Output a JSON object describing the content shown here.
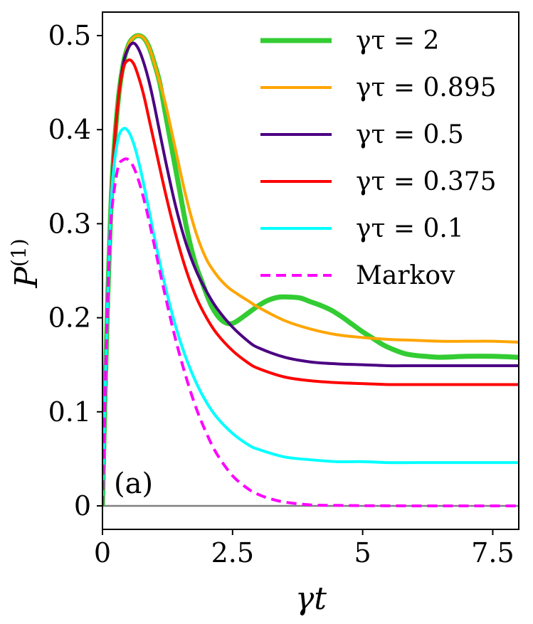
{
  "chart_data": {
    "type": "line",
    "title": "",
    "panel_label": "(a)",
    "xlabel": "γt",
    "ylabel": "P(1)",
    "ylabel_main": "P",
    "ylabel_sup": "(1)",
    "xlim": [
      0,
      8
    ],
    "ylim": [
      -0.025,
      0.525
    ],
    "grid": false,
    "legend_position": "top-right",
    "xticks": [
      {
        "value": 0,
        "label": "0"
      },
      {
        "value": 2.5,
        "label": "2.5"
      },
      {
        "value": 5,
        "label": "5"
      },
      {
        "value": 7.5,
        "label": "7.5"
      }
    ],
    "yticks": [
      {
        "value": 0,
        "label": "0"
      },
      {
        "value": 0.1,
        "label": "0.1"
      },
      {
        "value": 0.2,
        "label": "0.2"
      },
      {
        "value": 0.3,
        "label": "0.3"
      },
      {
        "value": 0.4,
        "label": "0.4"
      },
      {
        "value": 0.5,
        "label": "0.5"
      }
    ],
    "zero_line": 0,
    "series": [
      {
        "name": "γτ = 2",
        "color": "#33cc33",
        "dash": "solid",
        "weight": "thick",
        "x": [
          0,
          0.05,
          0.1,
          0.15,
          0.2,
          0.3,
          0.4,
          0.5,
          0.6,
          0.7,
          0.8,
          0.9,
          1.0,
          1.1,
          1.2,
          1.3,
          1.4,
          1.5,
          1.6,
          1.7,
          1.8,
          1.9,
          2.0,
          2.1,
          2.2,
          2.3,
          2.4,
          2.5,
          2.6,
          2.8,
          3.0,
          3.2,
          3.4,
          3.6,
          3.8,
          4.0,
          4.2,
          4.4,
          4.6,
          4.8,
          5.0,
          5.2,
          5.4,
          5.6,
          5.8,
          6.0,
          6.2,
          6.5,
          7.0,
          7.5,
          8.0
        ],
        "y": [
          0,
          0.12,
          0.22,
          0.3,
          0.36,
          0.43,
          0.47,
          0.49,
          0.498,
          0.5,
          0.497,
          0.487,
          0.47,
          0.45,
          0.42,
          0.39,
          0.36,
          0.33,
          0.3,
          0.275,
          0.255,
          0.24,
          0.225,
          0.212,
          0.203,
          0.197,
          0.194,
          0.194,
          0.197,
          0.205,
          0.213,
          0.219,
          0.222,
          0.222,
          0.221,
          0.217,
          0.213,
          0.208,
          0.201,
          0.193,
          0.185,
          0.178,
          0.171,
          0.166,
          0.162,
          0.16,
          0.159,
          0.158,
          0.159,
          0.159,
          0.158
        ]
      },
      {
        "name": "γτ = 0.895",
        "color": "#ffa500",
        "dash": "solid",
        "weight": "normal",
        "x": [
          0,
          0.05,
          0.1,
          0.15,
          0.2,
          0.3,
          0.4,
          0.5,
          0.6,
          0.7,
          0.8,
          0.9,
          1.0,
          1.2,
          1.4,
          1.6,
          1.8,
          2.0,
          2.2,
          2.4,
          2.6,
          2.8,
          3.0,
          3.5,
          4.0,
          4.5,
          5.0,
          5.5,
          6.0,
          6.5,
          7.0,
          7.5,
          8.0
        ],
        "y": [
          0,
          0.12,
          0.22,
          0.3,
          0.36,
          0.43,
          0.47,
          0.49,
          0.498,
          0.5,
          0.497,
          0.487,
          0.47,
          0.43,
          0.38,
          0.33,
          0.29,
          0.262,
          0.245,
          0.233,
          0.225,
          0.218,
          0.211,
          0.197,
          0.188,
          0.182,
          0.179,
          0.177,
          0.176,
          0.175,
          0.175,
          0.175,
          0.174
        ]
      },
      {
        "name": "γτ = 0.5",
        "color": "#4b0082",
        "dash": "solid",
        "weight": "normal",
        "x": [
          0,
          0.05,
          0.1,
          0.15,
          0.2,
          0.3,
          0.4,
          0.5,
          0.6,
          0.7,
          0.8,
          0.9,
          1.0,
          1.2,
          1.4,
          1.6,
          1.8,
          2.0,
          2.2,
          2.5,
          2.8,
          3.0,
          3.5,
          4.0,
          4.5,
          5.0,
          5.5,
          6.0,
          7.0,
          8.0
        ],
        "y": [
          0,
          0.12,
          0.22,
          0.3,
          0.36,
          0.43,
          0.47,
          0.487,
          0.492,
          0.485,
          0.47,
          0.45,
          0.425,
          0.37,
          0.32,
          0.28,
          0.25,
          0.228,
          0.21,
          0.19,
          0.175,
          0.168,
          0.158,
          0.153,
          0.151,
          0.15,
          0.149,
          0.149,
          0.149,
          0.149
        ]
      },
      {
        "name": "γτ = 0.375",
        "color": "#ff0000",
        "dash": "solid",
        "weight": "normal",
        "x": [
          0,
          0.05,
          0.1,
          0.15,
          0.2,
          0.3,
          0.4,
          0.5,
          0.6,
          0.7,
          0.8,
          0.9,
          1.0,
          1.2,
          1.4,
          1.6,
          1.8,
          2.0,
          2.2,
          2.5,
          2.8,
          3.0,
          3.5,
          4.0,
          4.5,
          5.0,
          5.5,
          6.0,
          7.0,
          8.0
        ],
        "y": [
          0,
          0.12,
          0.22,
          0.3,
          0.36,
          0.43,
          0.465,
          0.474,
          0.47,
          0.455,
          0.435,
          0.41,
          0.385,
          0.335,
          0.29,
          0.252,
          0.222,
          0.2,
          0.183,
          0.165,
          0.152,
          0.146,
          0.137,
          0.133,
          0.131,
          0.13,
          0.129,
          0.129,
          0.129,
          0.129
        ]
      },
      {
        "name": "γτ = 0.1",
        "color": "#00ffff",
        "dash": "solid",
        "weight": "normal",
        "x": [
          0,
          0.05,
          0.1,
          0.15,
          0.2,
          0.3,
          0.4,
          0.5,
          0.6,
          0.7,
          0.8,
          0.9,
          1.0,
          1.2,
          1.4,
          1.6,
          1.8,
          2.0,
          2.2,
          2.5,
          2.8,
          3.0,
          3.5,
          4.0,
          4.5,
          5.0,
          5.5,
          6.0,
          7.0,
          8.0
        ],
        "y": [
          0,
          0.12,
          0.22,
          0.3,
          0.35,
          0.39,
          0.401,
          0.398,
          0.385,
          0.365,
          0.34,
          0.313,
          0.285,
          0.235,
          0.192,
          0.158,
          0.131,
          0.11,
          0.094,
          0.077,
          0.065,
          0.06,
          0.052,
          0.049,
          0.047,
          0.047,
          0.046,
          0.046,
          0.046,
          0.046
        ]
      },
      {
        "name": "Markov",
        "color": "#ff00ff",
        "dash": "dashed",
        "weight": "normal",
        "x": [
          0,
          0.05,
          0.1,
          0.15,
          0.2,
          0.3,
          0.4,
          0.5,
          0.6,
          0.7,
          0.8,
          0.9,
          1.0,
          1.2,
          1.4,
          1.6,
          1.8,
          2.0,
          2.2,
          2.5,
          2.8,
          3.0,
          3.2,
          3.5,
          4.0,
          4.5,
          5.0,
          6.0,
          7.0,
          8.0
        ],
        "y": [
          0,
          0.12,
          0.22,
          0.29,
          0.325,
          0.36,
          0.368,
          0.368,
          0.36,
          0.345,
          0.325,
          0.302,
          0.276,
          0.225,
          0.178,
          0.138,
          0.104,
          0.077,
          0.055,
          0.032,
          0.018,
          0.012,
          0.008,
          0.004,
          0.001,
          0.0005,
          0.0002,
          0,
          0,
          0
        ]
      }
    ]
  }
}
